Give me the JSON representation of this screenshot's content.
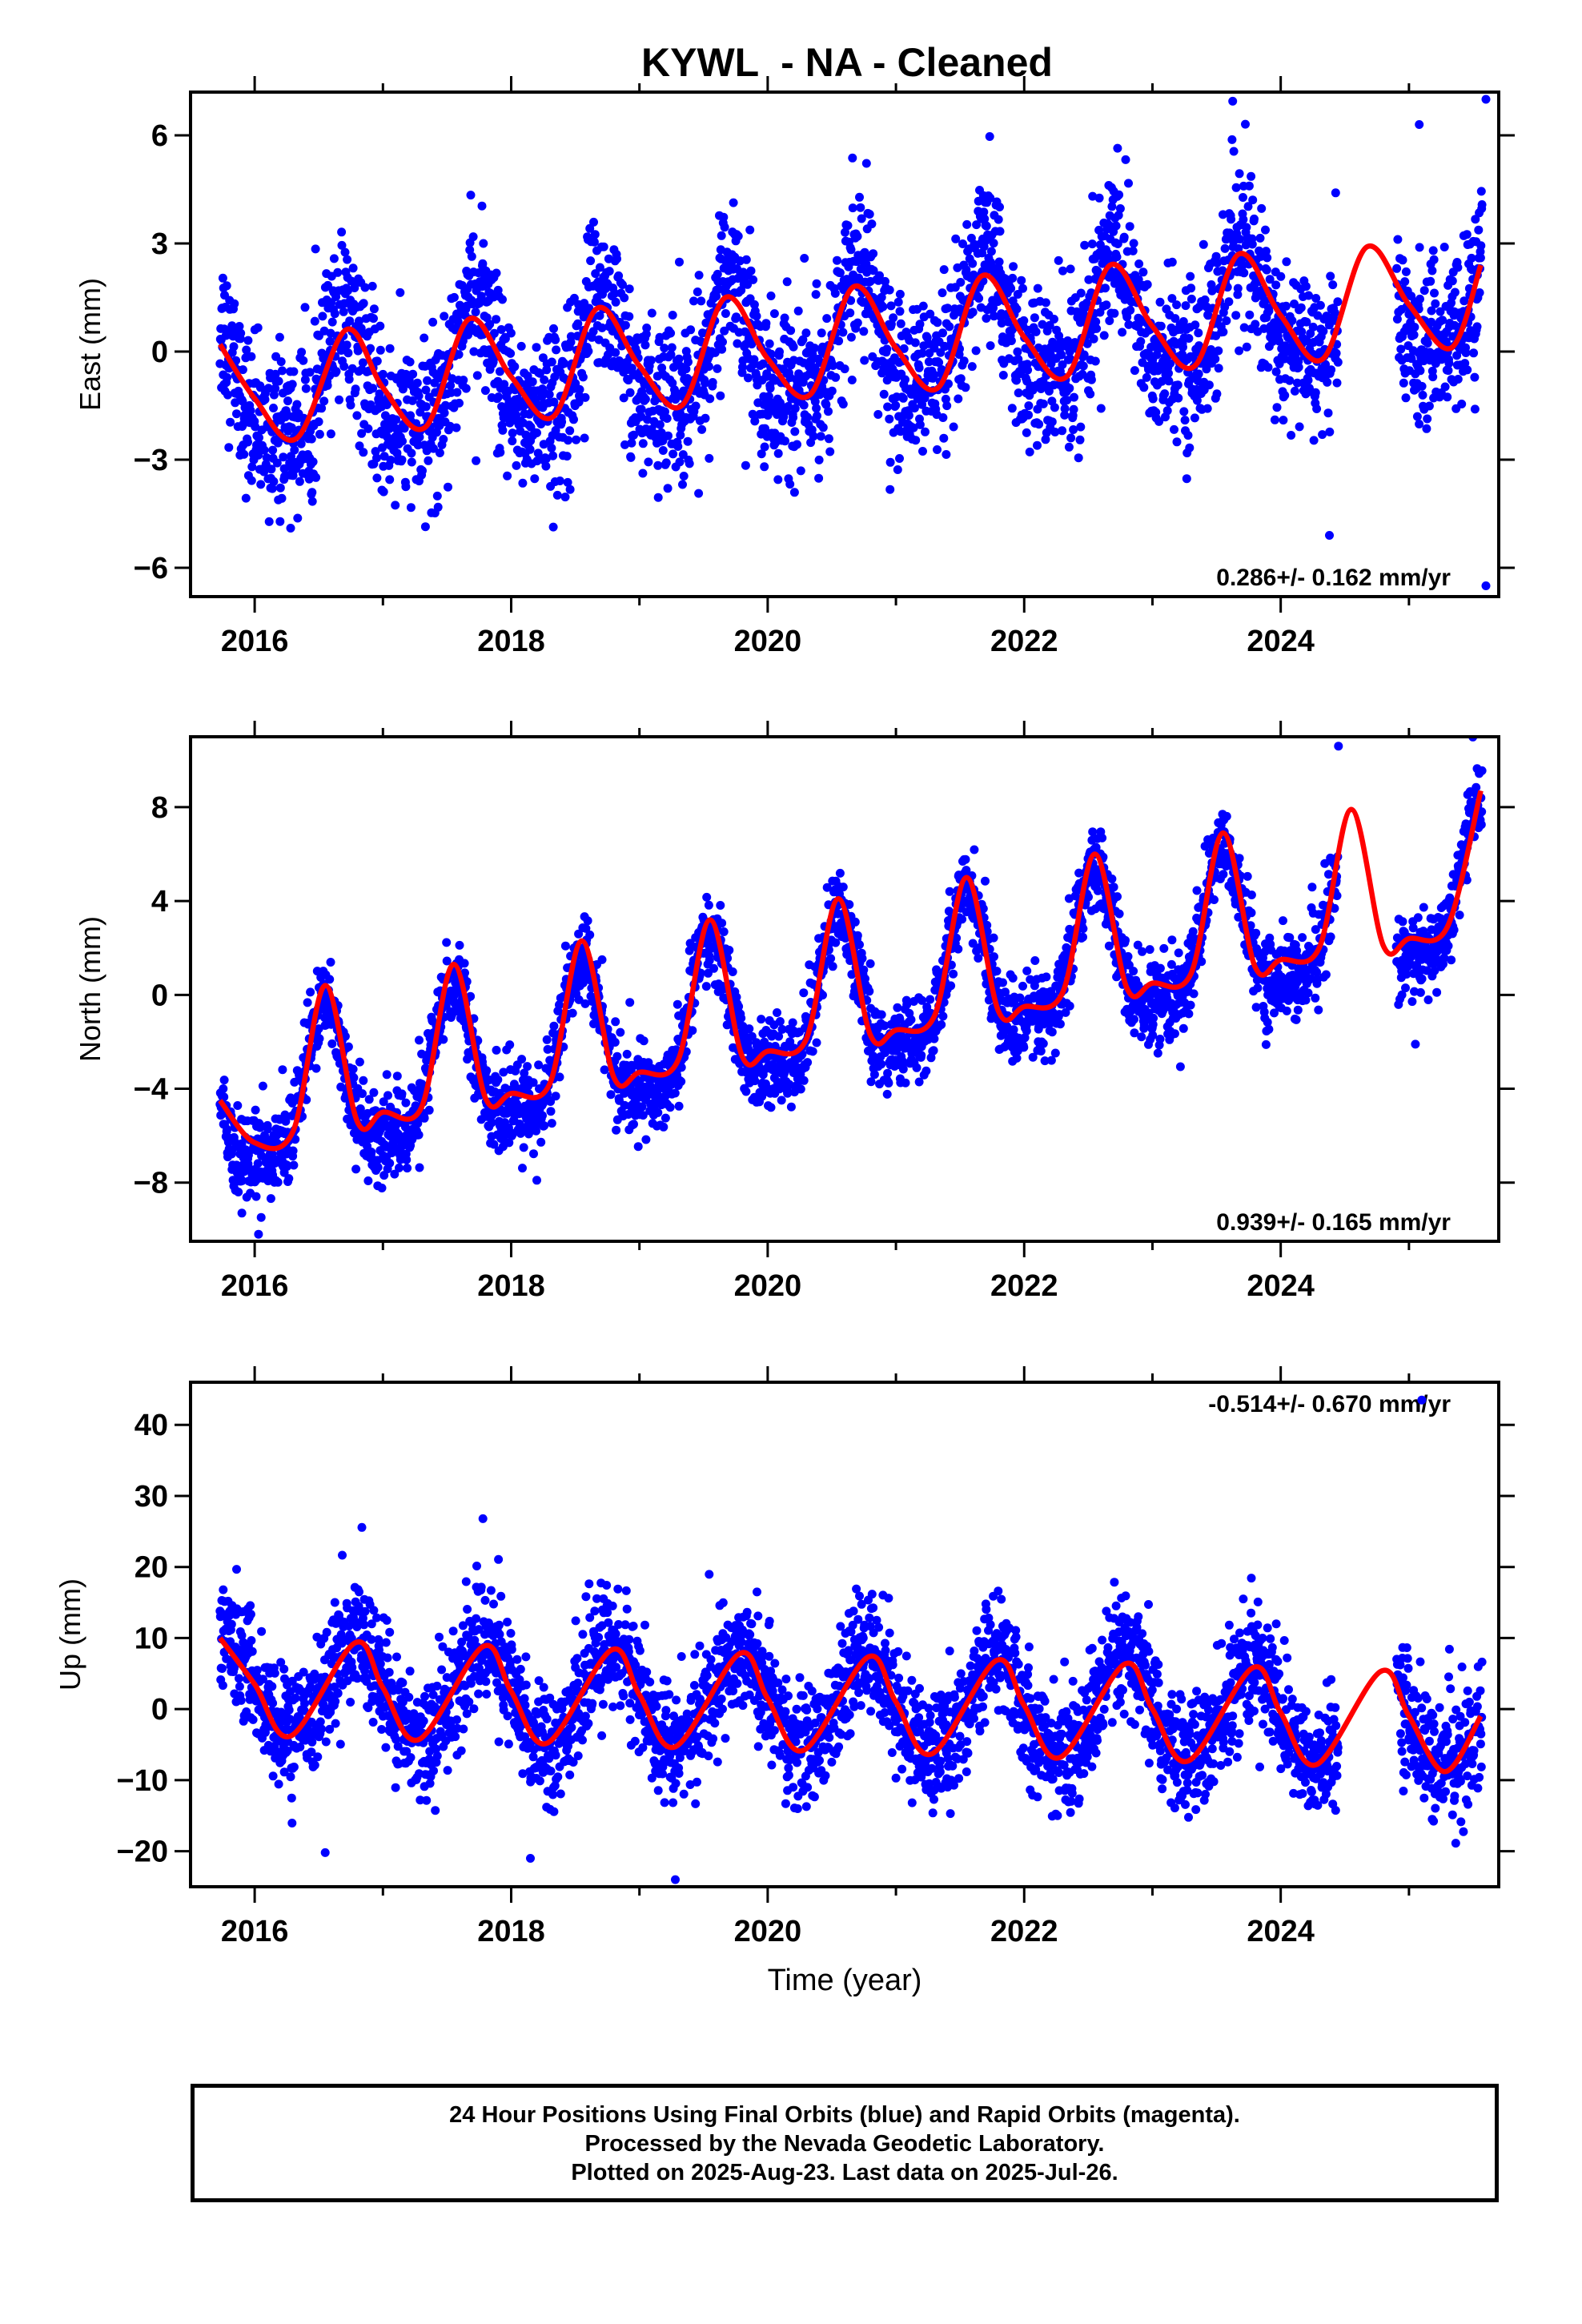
{
  "title": "KYWL  - NA - Cleaned",
  "xlabel": "Time (year)",
  "caption": [
    "24 Hour Positions Using Final Orbits (blue) and Rapid Orbits (magenta).",
    "Processed by the Nevada Geodetic Laboratory.",
    "Plotted on 2025-Aug-23. Last data on 2025-Jul-26."
  ],
  "colors": {
    "points": "#0000ff",
    "fit": "#ff0000",
    "axes": "#000000"
  },
  "chart_data": [
    {
      "type": "scatter",
      "component": "east",
      "ylabel": "East (mm)",
      "xlim": [
        2015.5,
        2025.7
      ],
      "ylim": [
        -6.8,
        7.2
      ],
      "yticks": [
        -6,
        -3,
        0,
        3,
        6
      ],
      "xticks": [
        2016,
        2018,
        2020,
        2022,
        2024
      ],
      "rate_label": "0.286+/- 0.162 mm/yr",
      "rate_position": "bottom-right",
      "fit_params": {
        "rate": 0.286,
        "offset": -1.2,
        "annual_amp": 1.6,
        "annual_peak": 0.7,
        "semiannual_amp": 0.55,
        "semiannual_peak": 0.2
      },
      "scatter_sd": 1.1,
      "fit_series": {
        "x": [
          2015.73,
          2016.0,
          2016.33,
          2016.71,
          2017.0,
          2017.33,
          2017.67,
          2018.0,
          2018.33,
          2018.67,
          2019.0,
          2019.33,
          2019.67,
          2020.0,
          2020.33,
          2020.67,
          2021.0,
          2021.33,
          2021.67,
          2022.0,
          2022.33,
          2022.67,
          2023.0,
          2023.33,
          2023.67,
          2024.0,
          2024.33,
          2024.67,
          2025.0,
          2025.33,
          2025.56
        ],
        "y": [
          0.2,
          -1.3,
          -2.4,
          0.6,
          -1.0,
          -2.1,
          0.9,
          -0.7,
          -1.8,
          1.2,
          -0.4,
          -1.5,
          1.5,
          -0.2,
          -1.2,
          1.8,
          0.1,
          -1.0,
          2.1,
          0.4,
          -0.7,
          2.4,
          0.7,
          -0.4,
          2.7,
          1.0,
          -0.2,
          2.9,
          1.3,
          0.1,
          2.4
        ]
      },
      "outliers": [
        {
          "x": 2025.08,
          "y": 6.3
        },
        {
          "x": 2025.6,
          "y": 7.0
        },
        {
          "x": 2025.6,
          "y": -6.5
        },
        {
          "x": 2024.38,
          "y": -5.1
        },
        {
          "x": 2016.28,
          "y": -4.9
        }
      ]
    },
    {
      "type": "scatter",
      "component": "north",
      "ylabel": "North (mm)",
      "xlim": [
        2015.5,
        2025.7
      ],
      "ylim": [
        -10.5,
        11
      ],
      "yticks": [
        -8,
        -4,
        0,
        4,
        8
      ],
      "xticks": [
        2016,
        2018,
        2020,
        2022,
        2024
      ],
      "rate_label": "0.939+/- 0.165 mm/yr",
      "rate_position": "bottom-right",
      "fit_params": {
        "rate": 0.939,
        "offset": -4.8,
        "annual_amp": 3.0,
        "annual_peak": 0.55,
        "semiannual_amp": 1.0,
        "semiannual_peak": 0.05
      },
      "scatter_sd": 0.9,
      "fit_series": {
        "x": [
          2015.73,
          2016.0,
          2016.3,
          2016.55,
          2016.8,
          2017.0,
          2017.3,
          2017.55,
          2017.8,
          2018.0,
          2018.3,
          2018.55,
          2018.8,
          2019.0,
          2019.3,
          2019.55,
          2019.8,
          2020.0,
          2020.3,
          2020.55,
          2020.8,
          2021.0,
          2021.3,
          2021.55,
          2021.8,
          2022.0,
          2022.3,
          2022.55,
          2022.8,
          2023.0,
          2023.3,
          2023.55,
          2023.8,
          2024.0,
          2024.3,
          2024.55,
          2024.8,
          2025.0,
          2025.3,
          2025.56
        ],
        "y": [
          -4.5,
          -6.3,
          -5.8,
          0.4,
          -5.4,
          -5.0,
          -4.8,
          1.3,
          -4.4,
          -4.2,
          -3.8,
          2.3,
          -3.5,
          -3.3,
          -2.8,
          3.2,
          -2.6,
          -2.4,
          -1.9,
          4.1,
          -1.7,
          -1.5,
          -0.9,
          5.0,
          -0.7,
          -0.5,
          0.1,
          6.0,
          0.3,
          0.5,
          0.9,
          6.9,
          1.2,
          1.5,
          2.0,
          7.9,
          2.1,
          2.4,
          2.9,
          8.7
        ]
      },
      "outliers": [
        {
          "x": 2016.03,
          "y": -10.2
        },
        {
          "x": 2015.9,
          "y": -9.3
        },
        {
          "x": 2018.2,
          "y": -7.9
        },
        {
          "x": 2025.05,
          "y": -2.1
        },
        {
          "x": 2024.45,
          "y": 10.6
        }
      ]
    },
    {
      "type": "scatter",
      "component": "up",
      "ylabel": "Up (mm)",
      "xlim": [
        2015.5,
        2025.7
      ],
      "ylim": [
        -25,
        46
      ],
      "yticks": [
        -20,
        -10,
        0,
        10,
        20,
        30,
        40
      ],
      "xticks": [
        2016,
        2018,
        2020,
        2022,
        2024
      ],
      "rate_label": "-0.514+/- 0.670 mm/yr",
      "rate_position": "top-right",
      "fit_params": {
        "rate": -0.514,
        "offset": 3.0,
        "annual_amp": 6.8,
        "annual_peak": 0.78,
        "semiannual_amp": 0.8,
        "semiannual_peak": 0.3
      },
      "scatter_sd": 4.2,
      "fit_series": {
        "x": [
          2015.73,
          2016.0,
          2016.28,
          2016.78,
          2017.0,
          2017.28,
          2017.78,
          2018.0,
          2018.28,
          2018.78,
          2019.0,
          2019.28,
          2019.78,
          2020.0,
          2020.28,
          2020.78,
          2021.0,
          2021.28,
          2021.78,
          2022.0,
          2022.28,
          2022.78,
          2023.0,
          2023.28,
          2023.78,
          2024.0,
          2024.28,
          2024.78,
          2025.0,
          2025.28,
          2025.56
        ],
        "y": [
          10.0,
          3.5,
          -3.8,
          9.3,
          3.0,
          -4.3,
          8.8,
          2.5,
          -4.8,
          8.3,
          2.0,
          -5.3,
          7.8,
          1.5,
          -5.8,
          7.3,
          1.0,
          -6.3,
          6.8,
          0.5,
          -6.8,
          6.3,
          0.0,
          -7.3,
          5.8,
          -0.5,
          -7.8,
          5.3,
          -1.0,
          -8.8,
          -1.0
        ]
      },
      "outliers": [
        {
          "x": 2025.1,
          "y": 43.5
        },
        {
          "x": 2017.78,
          "y": 26.8
        },
        {
          "x": 2019.28,
          "y": -24.0
        },
        {
          "x": 2016.55,
          "y": -20.2
        },
        {
          "x": 2018.15,
          "y": -21.0
        }
      ]
    }
  ]
}
